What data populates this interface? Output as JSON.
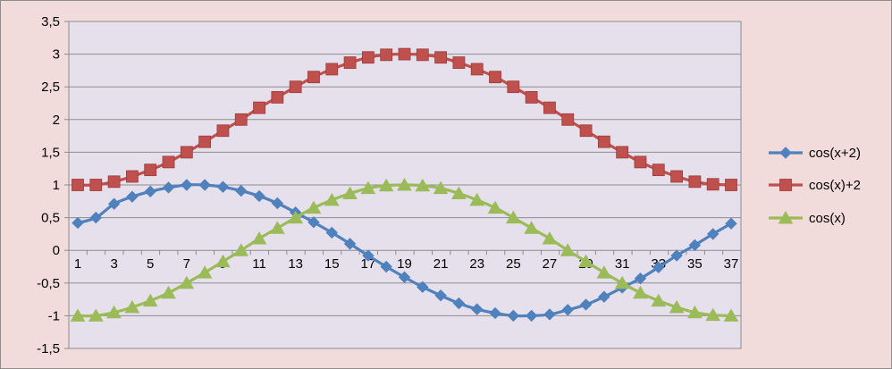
{
  "chart_data": {
    "type": "line",
    "title": "",
    "xlabel": "",
    "ylabel": "",
    "x": [
      1,
      2,
      3,
      4,
      5,
      6,
      7,
      8,
      9,
      10,
      11,
      12,
      13,
      14,
      15,
      16,
      17,
      18,
      19,
      20,
      21,
      22,
      23,
      24,
      25,
      26,
      27,
      28,
      29,
      30,
      31,
      32,
      33,
      34,
      35,
      36,
      37
    ],
    "x_tick_labels": [
      "1",
      "3",
      "5",
      "7",
      "9",
      "11",
      "13",
      "15",
      "17",
      "19",
      "21",
      "23",
      "25",
      "27",
      "29",
      "31",
      "33",
      "35",
      "37"
    ],
    "ylim": [
      -1.5,
      3.5
    ],
    "y_ticks": [
      -1.5,
      -1,
      -0.5,
      0,
      0.5,
      1,
      1.5,
      2,
      2.5,
      3,
      3.5
    ],
    "y_tick_labels": [
      "-1,5",
      "-1",
      "-0,5",
      "0",
      "0,5",
      "1",
      "1,5",
      "2",
      "2,5",
      "3",
      "3,5"
    ],
    "grid": "horizontal",
    "legend_position": "right",
    "plot_background": "#e6e0ec",
    "chart_background": "#f2dcdb",
    "series": [
      {
        "name": "cos(x+2)",
        "color": "#4f81bd",
        "marker": "diamond",
        "values": [
          0.42,
          0.5,
          0.71,
          0.82,
          0.9,
          0.96,
          1.0,
          1.0,
          0.97,
          0.91,
          0.83,
          0.72,
          0.58,
          0.43,
          0.27,
          0.1,
          -0.08,
          -0.25,
          -0.41,
          -0.56,
          -0.69,
          -0.81,
          -0.9,
          -0.96,
          -1.0,
          -1.0,
          -0.98,
          -0.91,
          -0.83,
          -0.71,
          -0.57,
          -0.43,
          -0.26,
          -0.08,
          0.08,
          0.25,
          0.41
        ]
      },
      {
        "name": "cos(x)+2",
        "color": "#c0504d",
        "marker": "square",
        "values": [
          1.0,
          1.0,
          1.05,
          1.13,
          1.23,
          1.35,
          1.5,
          1.66,
          1.83,
          2.0,
          2.18,
          2.34,
          2.5,
          2.65,
          2.77,
          2.87,
          2.95,
          2.99,
          3.0,
          2.99,
          2.95,
          2.87,
          2.77,
          2.65,
          2.5,
          2.34,
          2.18,
          2.0,
          1.83,
          1.66,
          1.5,
          1.35,
          1.23,
          1.13,
          1.05,
          1.01,
          1.0
        ]
      },
      {
        "name": "cos(x)",
        "color": "#9bbb59",
        "marker": "triangle",
        "values": [
          -1.0,
          -1.0,
          -0.95,
          -0.87,
          -0.77,
          -0.65,
          -0.5,
          -0.34,
          -0.17,
          0.0,
          0.18,
          0.34,
          0.5,
          0.65,
          0.77,
          0.87,
          0.95,
          0.99,
          1.0,
          0.99,
          0.95,
          0.87,
          0.77,
          0.65,
          0.5,
          0.34,
          0.18,
          0.0,
          -0.17,
          -0.34,
          -0.5,
          -0.65,
          -0.77,
          -0.87,
          -0.95,
          -0.99,
          -1.0
        ]
      }
    ]
  }
}
